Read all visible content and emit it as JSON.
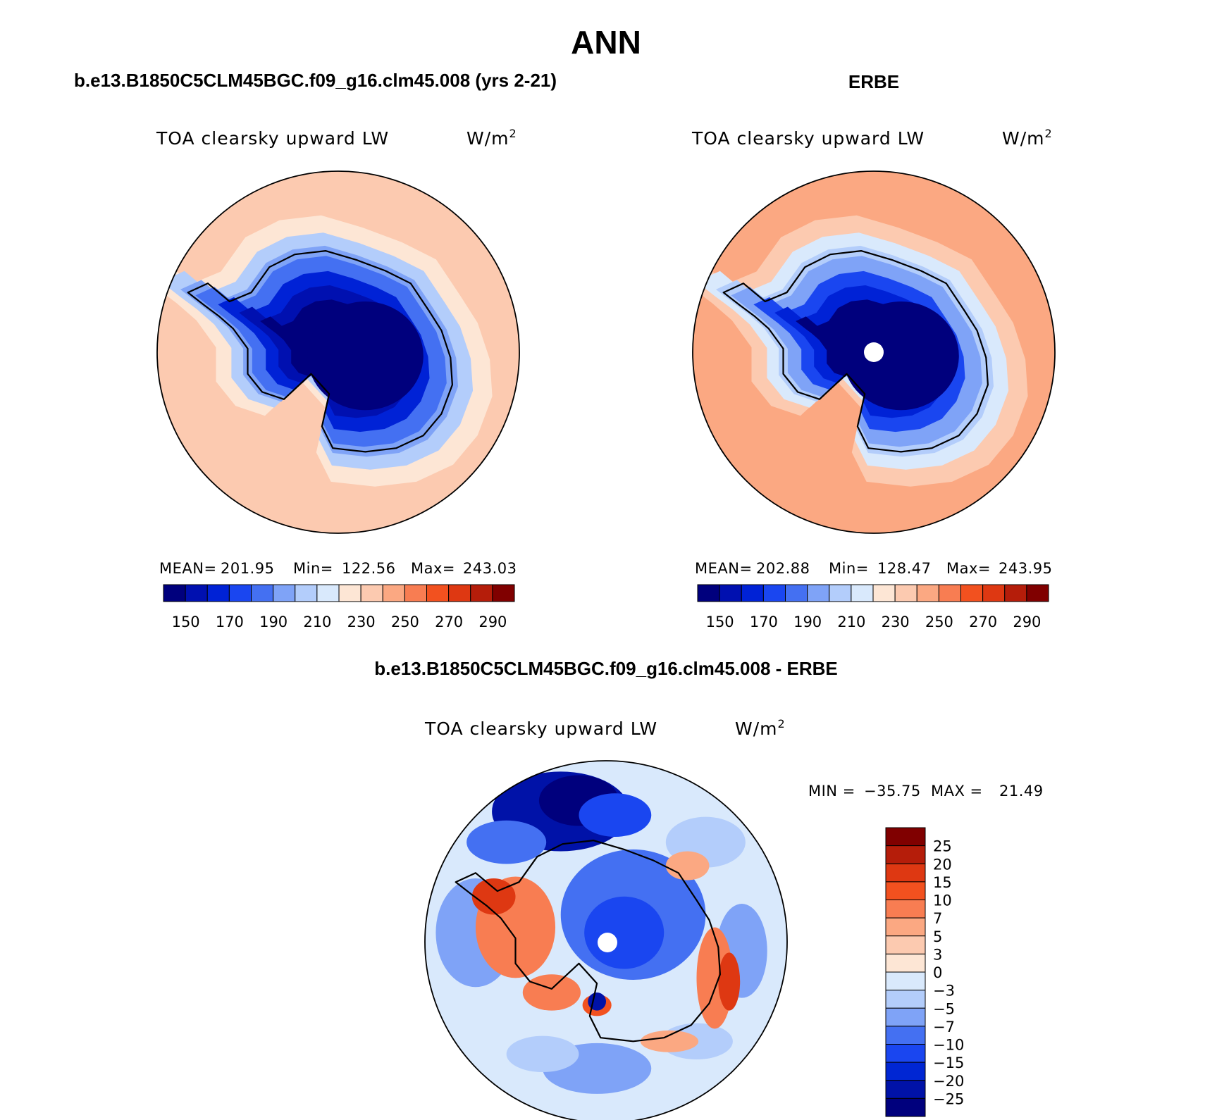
{
  "figure_title": "ANN",
  "colors": {
    "abs": [
      "#00007d",
      "#0010b0",
      "#0022d6",
      "#1a46f0",
      "#4470f2",
      "#7fa3f7",
      "#b3cdfb",
      "#d9e9fc",
      "#fde6d5",
      "#fccab0",
      "#fba882",
      "#f87d52",
      "#f2511f",
      "#de3812",
      "#b51d0a",
      "#800000"
    ],
    "diff": [
      "#00007d",
      "#0012a8",
      "#0026d3",
      "#1a46f0",
      "#4470f2",
      "#7fa3f7",
      "#b3cdfb",
      "#d9e9fc",
      "#fde6d5",
      "#fccab0",
      "#fba882",
      "#f87d52",
      "#f2511f",
      "#de3812",
      "#b51d0a",
      "#800000"
    ],
    "pole_hole": "#ffffff"
  },
  "panels": [
    {
      "id": "model",
      "header": "b.e13.B1850C5CLM45BGC.f09_g16.clm45.008 (yrs 2-21)",
      "variable": "TOA clearsky upward LW",
      "units": "W/m",
      "units_sup": "2",
      "stats": {
        "mean_label": "MEAN=",
        "mean": "201.95",
        "min_label": "Min=",
        "min": "122.56",
        "max_label": "Max=",
        "max": "243.03"
      },
      "field": {
        "ice_core": 122.56,
        "mid_ice": 150,
        "coast": 185,
        "ocean_edge": 232
      },
      "pole_hole": false
    },
    {
      "id": "obs",
      "header": "ERBE",
      "variable": "TOA clearsky upward LW",
      "units": "W/m",
      "units_sup": "2",
      "stats": {
        "mean_label": "MEAN=",
        "mean": "202.88",
        "min_label": "Min=",
        "min": "128.47",
        "max_label": "Max=",
        "max": "243.95"
      },
      "field": {
        "ice_core": 128.47,
        "mid_ice": 162,
        "coast": 195,
        "ocean_edge": 243
      },
      "pole_hole": true
    }
  ],
  "abs_colorbar": {
    "tick_labels": [
      "150",
      "170",
      "190",
      "210",
      "230",
      "250",
      "270",
      "290"
    ],
    "levels": [
      140,
      150,
      160,
      170,
      180,
      190,
      200,
      210,
      220,
      230,
      240,
      250,
      260,
      270,
      280,
      290
    ]
  },
  "diff_panel": {
    "header": "b.e13.B1850C5CLM45BGC.f09_g16.clm45.008 - ERBE",
    "variable": "TOA clearsky upward LW",
    "units": "W/m",
    "units_sup": "2",
    "minmax": {
      "min_label": "MIN =",
      "min": "−35.75",
      "max_label": "MAX =",
      "max": "21.49"
    },
    "pole_hole": true,
    "levels": [
      -30,
      -25,
      -20,
      -15,
      -10,
      -7,
      -5,
      -3,
      0,
      3,
      5,
      7,
      10,
      15,
      20,
      25
    ],
    "colorbar_labels": [
      "25",
      "20",
      "15",
      "10",
      "7",
      "5",
      "3",
      "0",
      "−3",
      "−5",
      "−7",
      "−10",
      "−15",
      "−20",
      "−25"
    ]
  }
}
